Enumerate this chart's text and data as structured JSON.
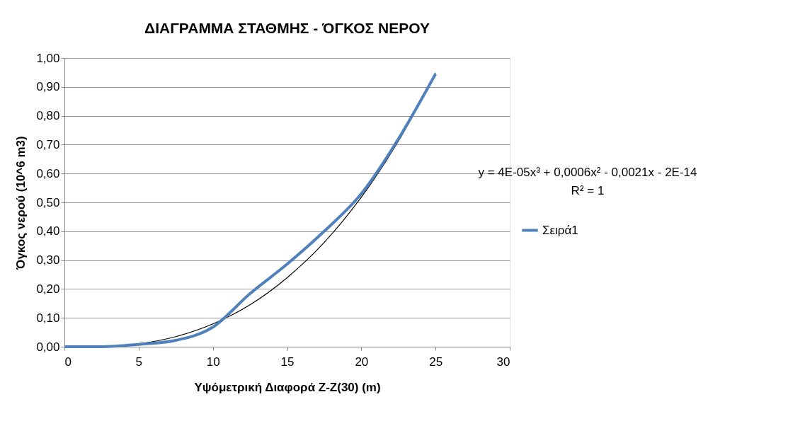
{
  "chart_data": {
    "type": "line",
    "title": "ΔΙΑΓΡΑΜΜΑ ΣΤΑΘΜΗΣ - ΌΓΚΟΣ ΝΕΡΟΥ",
    "xlabel": "Υψόμετρική Διαφορά Z-Z(30) (m)",
    "ylabel": "Όγκος νερού  (10^6 m3)",
    "x": [
      0,
      2.5,
      5,
      7.5,
      10,
      12.5,
      15,
      17.5,
      20,
      22.5,
      25
    ],
    "series": [
      {
        "name": "Σειρά1",
        "color": "#4f81bd",
        "values": [
          0,
          0.0,
          0.008,
          0.022,
          0.068,
          0.184,
          0.286,
          0.4,
          0.53,
          0.72,
          0.945
        ]
      },
      {
        "type": "line",
        "color": "#000000",
        "x": [
          0,
          2.5,
          5,
          7.5,
          10,
          12.5,
          15,
          17.5,
          20,
          22.5,
          25
        ],
        "values": [
          0,
          0.0,
          0.01,
          0.035,
          0.079,
          0.145,
          0.239,
          0.361,
          0.518,
          0.712,
          0.948
        ]
      }
    ],
    "xlim": [
      0,
      30
    ],
    "xticks": [
      0,
      5,
      10,
      15,
      20,
      25,
      30
    ],
    "ylim": [
      0,
      1
    ],
    "yticks": [
      {
        "value": 0,
        "label": "0,00"
      },
      {
        "value": 0.1,
        "label": "0,10"
      },
      {
        "value": 0.2,
        "label": "0,20"
      },
      {
        "value": 0.3,
        "label": "0,30"
      },
      {
        "value": 0.4,
        "label": "0,40"
      },
      {
        "value": 0.5,
        "label": "0,50"
      },
      {
        "value": 0.6,
        "label": "0,60"
      },
      {
        "value": 0.7,
        "label": "0,70"
      },
      {
        "value": 0.8,
        "label": "0,80"
      },
      {
        "value": 0.9,
        "label": "0,90"
      },
      {
        "value": 1,
        "label": "1,00"
      }
    ],
    "annotations": [
      "y = 4E-05x³ + 0,0006x² - 0,0021x - 2E-14",
      "R² = 1"
    ],
    "grid": "y",
    "legend": "right",
    "marker": "none",
    "line_style": "solid"
  }
}
